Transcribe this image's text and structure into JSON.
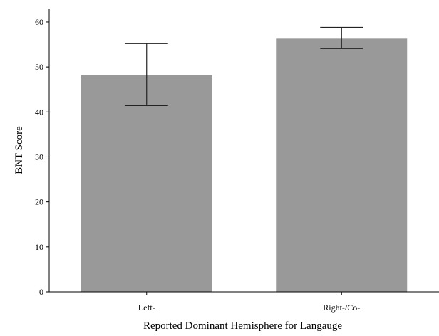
{
  "chart_data": {
    "type": "bar",
    "title": "",
    "xlabel": "Reported Dominant Hemisphere for Langauge",
    "ylabel": "BNT Score",
    "categories": [
      "Left-",
      "Right-/Co-"
    ],
    "values": [
      48.2,
      56.3
    ],
    "error_bars": [
      {
        "low": 41.4,
        "high": 55.2
      },
      {
        "low": 54.1,
        "high": 58.8
      }
    ],
    "ylim": [
      0,
      63
    ],
    "yticks": [
      0,
      10,
      20,
      30,
      40,
      50,
      60
    ],
    "grid": false,
    "legend": "none",
    "bar_color": "#999999",
    "axis_color": "#000000"
  }
}
